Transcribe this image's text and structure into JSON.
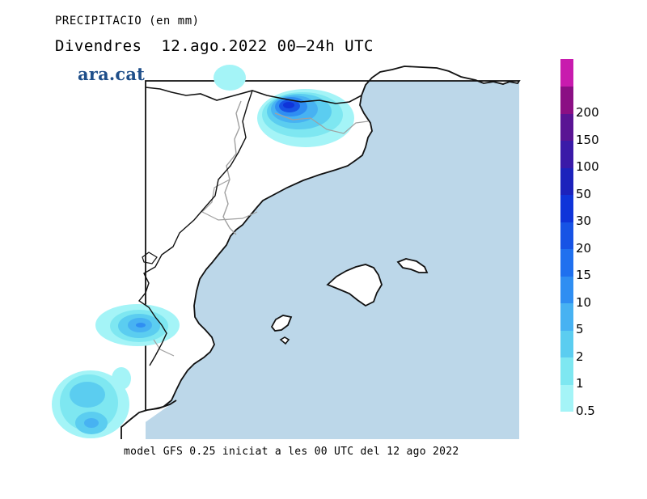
{
  "header": {
    "title": "PRECIPITACIO (en mm)",
    "subtitle": "Divendres  12.ago.2022 00–24h UTC"
  },
  "logo": {
    "text": "ara.cat"
  },
  "footer": {
    "text": "model GFS 0.25 iniciat a les 00 UTC del 12 ago 2022"
  },
  "colors": {
    "sea": "#bcd7e9",
    "land": "#ffffff",
    "coast": "#111111",
    "border": "#a0a0a0"
  },
  "legend": {
    "unit": "mm",
    "items": [
      {
        "label": "0.5",
        "color": "#a4f4f7"
      },
      {
        "label": "1",
        "color": "#7ee7f1"
      },
      {
        "label": "2",
        "color": "#5bcdf0"
      },
      {
        "label": "5",
        "color": "#47b2f2"
      },
      {
        "label": "10",
        "color": "#2f8ef2"
      },
      {
        "label": "15",
        "color": "#1f70ef"
      },
      {
        "label": "20",
        "color": "#1753e5"
      },
      {
        "label": "30",
        "color": "#0f34d9"
      },
      {
        "label": "50",
        "color": "#1c22bc"
      },
      {
        "label": "100",
        "color": "#3a1aa8"
      },
      {
        "label": "150",
        "color": "#5a1494"
      },
      {
        "label": "200",
        "color": "#8b0f84"
      },
      {
        "label": "",
        "color": "#c81bae"
      }
    ]
  }
}
